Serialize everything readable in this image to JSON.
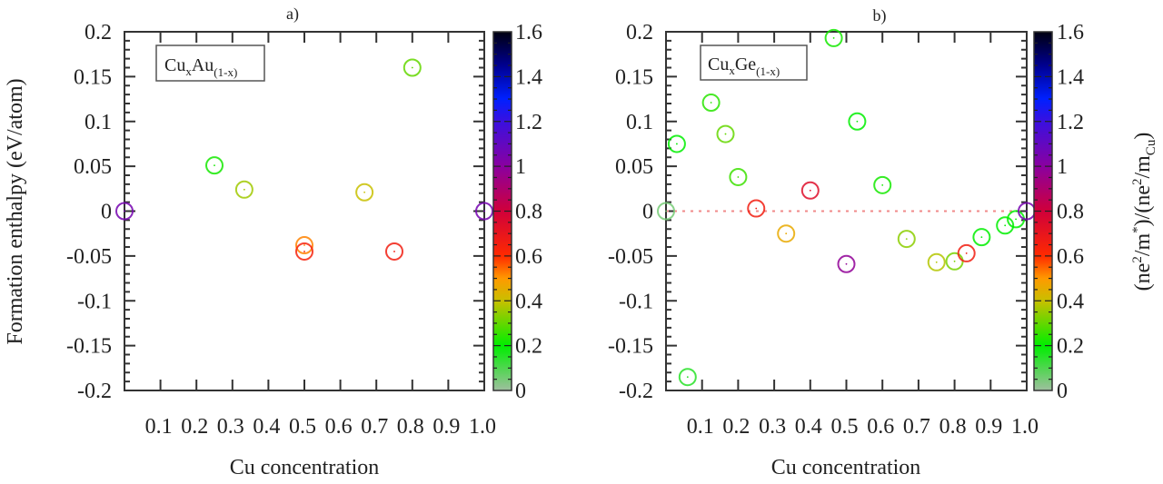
{
  "figure": {
    "panels": [
      {
        "id": "a",
        "panel_label": "a)",
        "legend_main": "Cu",
        "legend_sub1": "x",
        "legend_main2": "Au",
        "legend_sub2": "(1-x)",
        "show_zero_line": false
      },
      {
        "id": "b",
        "panel_label": "b)",
        "legend_main": "Cu",
        "legend_sub1": "x",
        "legend_main2": "Ge",
        "legend_sub2": "(1-x)",
        "show_zero_line": true
      }
    ],
    "colorbar": {
      "ticks": [
        "0",
        "0.2",
        "0.4",
        "0.6",
        "0.8",
        "1",
        "1.2",
        "1.4",
        "1.6"
      ],
      "label": "(ne²/m*)/(ne²/m_Cu)",
      "stops": [
        {
          "v": 0.0,
          "color": "#9fbf9f"
        },
        {
          "v": 0.2,
          "color": "#00ee00"
        },
        {
          "v": 0.4,
          "color": "#c8c000"
        },
        {
          "v": 0.5,
          "color": "#ff9900"
        },
        {
          "v": 0.6,
          "color": "#ff2a00"
        },
        {
          "v": 0.8,
          "color": "#d0003a"
        },
        {
          "v": 1.0,
          "color": "#8a00a0"
        },
        {
          "v": 1.2,
          "color": "#3a10e0"
        },
        {
          "v": 1.3,
          "color": "#0020ff"
        },
        {
          "v": 1.45,
          "color": "#000090"
        },
        {
          "v": 1.6,
          "color": "#000010"
        }
      ]
    },
    "zero_line_color": "#f08a8a"
  },
  "chart_data": [
    {
      "type": "scatter",
      "title": "a)",
      "legend": "CuxAu(1-x)",
      "xlabel": "Cu concentration",
      "ylabel": "Formation enthalpy (eV/atom)",
      "colorbar_label": "(ne^2/m*)/(ne^2/m_Cu)",
      "xlim": [
        0.0,
        1.0
      ],
      "ylim": [
        -0.2,
        0.2
      ],
      "clim": [
        0,
        1.6
      ],
      "x_ticks": [
        "0.1",
        "0.2",
        "0.3",
        "0.4",
        "0.5",
        "0.6",
        "0.7",
        "0.8",
        "0.9",
        "1.0"
      ],
      "y_ticks": [
        "-0.2",
        "-0.15",
        "-0.1",
        "-0.05",
        "0",
        "0.05",
        "0.1",
        "0.15",
        "0.2"
      ],
      "grid": false,
      "points": [
        {
          "x": 0.0,
          "y": 0.0,
          "c": 1.05
        },
        {
          "x": 0.25,
          "y": 0.051,
          "c": 0.22
        },
        {
          "x": 0.333,
          "y": 0.024,
          "c": 0.36
        },
        {
          "x": 0.5,
          "y": -0.038,
          "c": 0.52
        },
        {
          "x": 0.5,
          "y": -0.045,
          "c": 0.64
        },
        {
          "x": 0.667,
          "y": 0.021,
          "c": 0.4
        },
        {
          "x": 0.75,
          "y": -0.045,
          "c": 0.66
        },
        {
          "x": 0.8,
          "y": 0.16,
          "c": 0.3
        },
        {
          "x": 1.0,
          "y": 0.0,
          "c": 1.05
        }
      ]
    },
    {
      "type": "scatter",
      "title": "b)",
      "legend": "CuxGe(1-x)",
      "xlabel": "Cu concentration",
      "ylabel": "",
      "colorbar_label": "(ne^2/m*)/(ne^2/m_Cu)",
      "xlim": [
        0.0,
        1.0
      ],
      "ylim": [
        -0.2,
        0.2
      ],
      "clim": [
        0,
        1.6
      ],
      "x_ticks": [
        "0.1",
        "0.2",
        "0.3",
        "0.4",
        "0.5",
        "0.6",
        "0.7",
        "0.8",
        "0.9",
        "1.0"
      ],
      "y_ticks": [
        "-0.2",
        "-0.15",
        "-0.1",
        "-0.05",
        "0",
        "0.05",
        "0.1",
        "0.15",
        "0.2"
      ],
      "grid": false,
      "reference_line": {
        "y": 0,
        "style": "dotted",
        "color": "#f08a8a"
      },
      "points": [
        {
          "x": 0.0,
          "y": 0.0,
          "c": 0.05
        },
        {
          "x": 0.03,
          "y": 0.075,
          "c": 0.2
        },
        {
          "x": 0.06,
          "y": -0.185,
          "c": 0.15
        },
        {
          "x": 0.125,
          "y": 0.121,
          "c": 0.24
        },
        {
          "x": 0.165,
          "y": 0.086,
          "c": 0.3
        },
        {
          "x": 0.2,
          "y": 0.038,
          "c": 0.26
        },
        {
          "x": 0.25,
          "y": 0.003,
          "c": 0.66
        },
        {
          "x": 0.333,
          "y": -0.025,
          "c": 0.46
        },
        {
          "x": 0.4,
          "y": 0.023,
          "c": 0.74
        },
        {
          "x": 0.465,
          "y": 0.193,
          "c": 0.22
        },
        {
          "x": 0.5,
          "y": -0.059,
          "c": 0.98
        },
        {
          "x": 0.53,
          "y": 0.1,
          "c": 0.2
        },
        {
          "x": 0.6,
          "y": 0.029,
          "c": 0.22
        },
        {
          "x": 0.667,
          "y": -0.031,
          "c": 0.34
        },
        {
          "x": 0.75,
          "y": -0.057,
          "c": 0.38
        },
        {
          "x": 0.8,
          "y": -0.056,
          "c": 0.32
        },
        {
          "x": 0.833,
          "y": -0.047,
          "c": 0.66
        },
        {
          "x": 0.875,
          "y": -0.029,
          "c": 0.2
        },
        {
          "x": 0.94,
          "y": -0.016,
          "c": 0.2
        },
        {
          "x": 0.97,
          "y": -0.009,
          "c": 0.2
        },
        {
          "x": 1.0,
          "y": 0.0,
          "c": 1.05
        }
      ]
    }
  ]
}
